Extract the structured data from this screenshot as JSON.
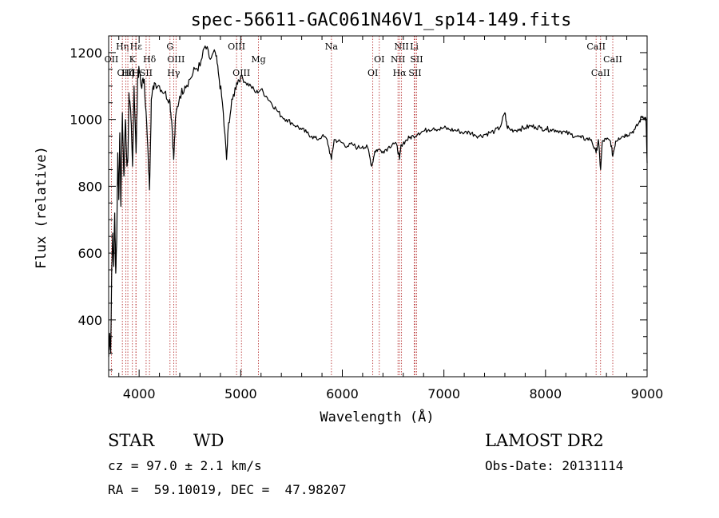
{
  "chart_data": {
    "type": "line",
    "title": "spec-56611-GAC061N46V1_sp14-149.fits",
    "xlabel": "Wavelength (Å)",
    "ylabel": "Flux (relative)",
    "xlim": [
      3700,
      9000
    ],
    "ylim": [
      230,
      1250
    ],
    "x_ticks": [
      4000,
      5000,
      6000,
      7000,
      8000,
      9000
    ],
    "x_tick_labels": [
      "4000",
      "5000",
      "6000",
      "7000",
      "8000",
      "9000"
    ],
    "y_ticks": [
      400,
      600,
      800,
      1000,
      1200
    ],
    "y_tick_labels": [
      "400",
      "600",
      "800",
      "1000",
      "1200"
    ],
    "series": [
      {
        "name": "spectrum",
        "points": [
          [
            3700,
            290
          ],
          [
            3710,
            360
          ],
          [
            3720,
            300
          ],
          [
            3730,
            540
          ],
          [
            3740,
            660
          ],
          [
            3750,
            560
          ],
          [
            3760,
            720
          ],
          [
            3770,
            540
          ],
          [
            3780,
            650
          ],
          [
            3790,
            900
          ],
          [
            3800,
            760
          ],
          [
            3810,
            960
          ],
          [
            3820,
            740
          ],
          [
            3835,
            1020
          ],
          [
            3850,
            830
          ],
          [
            3865,
            1000
          ],
          [
            3880,
            860
          ],
          [
            3889,
            880
          ],
          [
            3900,
            1080
          ],
          [
            3920,
            1000
          ],
          [
            3935,
            860
          ],
          [
            3950,
            1100
          ],
          [
            3970,
            900
          ],
          [
            3985,
            1120
          ],
          [
            4000,
            1150
          ],
          [
            4020,
            1100
          ],
          [
            4050,
            1120
          ],
          [
            4080,
            950
          ],
          [
            4102,
            790
          ],
          [
            4120,
            1060
          ],
          [
            4150,
            1110
          ],
          [
            4200,
            1100
          ],
          [
            4250,
            1080
          ],
          [
            4300,
            1060
          ],
          [
            4320,
            1000
          ],
          [
            4340,
            880
          ],
          [
            4360,
            1010
          ],
          [
            4400,
            1070
          ],
          [
            4450,
            1100
          ],
          [
            4500,
            1120
          ],
          [
            4550,
            1150
          ],
          [
            4600,
            1160
          ],
          [
            4650,
            1220
          ],
          [
            4700,
            1180
          ],
          [
            4750,
            1200
          ],
          [
            4780,
            1140
          ],
          [
            4820,
            1050
          ],
          [
            4861,
            880
          ],
          [
            4880,
            990
          ],
          [
            4920,
            1060
          ],
          [
            4960,
            1110
          ],
          [
            5000,
            1130
          ],
          [
            5050,
            1110
          ],
          [
            5100,
            1100
          ],
          [
            5150,
            1080
          ],
          [
            5200,
            1090
          ],
          [
            5250,
            1070
          ],
          [
            5300,
            1050
          ],
          [
            5350,
            1030
          ],
          [
            5400,
            1010
          ],
          [
            5450,
            1000
          ],
          [
            5500,
            990
          ],
          [
            5550,
            980
          ],
          [
            5600,
            970
          ],
          [
            5650,
            960
          ],
          [
            5700,
            950
          ],
          [
            5750,
            940
          ],
          [
            5800,
            950
          ],
          [
            5850,
            940
          ],
          [
            5893,
            880
          ],
          [
            5920,
            940
          ],
          [
            5960,
            935
          ],
          [
            6000,
            930
          ],
          [
            6050,
            920
          ],
          [
            6100,
            925
          ],
          [
            6150,
            915
          ],
          [
            6200,
            920
          ],
          [
            6250,
            915
          ],
          [
            6290,
            860
          ],
          [
            6320,
            905
          ],
          [
            6350,
            910
          ],
          [
            6400,
            905
          ],
          [
            6450,
            915
          ],
          [
            6500,
            930
          ],
          [
            6540,
            920
          ],
          [
            6563,
            880
          ],
          [
            6580,
            925
          ],
          [
            6620,
            935
          ],
          [
            6660,
            945
          ],
          [
            6700,
            950
          ],
          [
            6750,
            960
          ],
          [
            6800,
            965
          ],
          [
            6850,
            970
          ],
          [
            6900,
            975
          ],
          [
            6950,
            970
          ],
          [
            7000,
            975
          ],
          [
            7050,
            970
          ],
          [
            7100,
            968
          ],
          [
            7150,
            965
          ],
          [
            7200,
            960
          ],
          [
            7250,
            962
          ],
          [
            7300,
            955
          ],
          [
            7350,
            950
          ],
          [
            7400,
            955
          ],
          [
            7450,
            960
          ],
          [
            7500,
            965
          ],
          [
            7550,
            975
          ],
          [
            7600,
            1020
          ],
          [
            7620,
            980
          ],
          [
            7650,
            970
          ],
          [
            7700,
            968
          ],
          [
            7750,
            972
          ],
          [
            7800,
            975
          ],
          [
            7850,
            980
          ],
          [
            7900,
            978
          ],
          [
            7950,
            975
          ],
          [
            8000,
            972
          ],
          [
            8050,
            970
          ],
          [
            8100,
            968
          ],
          [
            8150,
            965
          ],
          [
            8200,
            960
          ],
          [
            8250,
            955
          ],
          [
            8300,
            950
          ],
          [
            8350,
            945
          ],
          [
            8400,
            942
          ],
          [
            8450,
            940
          ],
          [
            8498,
            900
          ],
          [
            8520,
            940
          ],
          [
            8542,
            850
          ],
          [
            8560,
            935
          ],
          [
            8600,
            940
          ],
          [
            8640,
            935
          ],
          [
            8662,
            890
          ],
          [
            8690,
            935
          ],
          [
            8720,
            945
          ],
          [
            8760,
            950
          ],
          [
            8800,
            955
          ],
          [
            8840,
            960
          ],
          [
            8880,
            970
          ],
          [
            8920,
            990
          ],
          [
            8950,
            1010
          ],
          [
            8975,
            1005
          ],
          [
            8990,
            1000
          ],
          [
            9000,
            870
          ]
        ]
      }
    ],
    "line_markers": [
      {
        "label": "Hη",
        "x": 3835,
        "row": 1
      },
      {
        "label": "Hε",
        "x": 3970,
        "row": 1
      },
      {
        "label": "G",
        "x": 4304,
        "row": 1
      },
      {
        "label": "OIII",
        "x": 4959,
        "row": 1
      },
      {
        "label": "Na",
        "x": 5893,
        "row": 1
      },
      {
        "label": "NII",
        "x": 6583,
        "row": 1
      },
      {
        "label": "Li",
        "x": 6708,
        "row": 1
      },
      {
        "label": "CaII",
        "x": 8498,
        "row": 1
      },
      {
        "label": "OII",
        "x": 3727,
        "row": 2
      },
      {
        "label": "K",
        "x": 3934,
        "row": 2
      },
      {
        "label": "Hδ",
        "x": 4102,
        "row": 2
      },
      {
        "label": "OIII",
        "x": 4363,
        "row": 2
      },
      {
        "label": "Mg",
        "x": 5175,
        "row": 2
      },
      {
        "label": "OI",
        "x": 6364,
        "row": 2
      },
      {
        "label": "NII",
        "x": 6548,
        "row": 2
      },
      {
        "label": "SII",
        "x": 6731,
        "row": 2
      },
      {
        "label": "CaII",
        "x": 8662,
        "row": 2
      },
      {
        "label": "OIII",
        "x": 3869,
        "row": 3
      },
      {
        "label": "Hζ",
        "x": 3889,
        "row": 3
      },
      {
        "label": "H",
        "x": 3968,
        "row": 3
      },
      {
        "label": "SII",
        "x": 4069,
        "row": 3
      },
      {
        "label": "Hγ",
        "x": 4340,
        "row": 3
      },
      {
        "label": "OIII",
        "x": 5007,
        "row": 3
      },
      {
        "label": "OI",
        "x": 6300,
        "row": 3
      },
      {
        "label": "Hα",
        "x": 6563,
        "row": 3
      },
      {
        "label": "SII",
        "x": 6716,
        "row": 3
      },
      {
        "label": "CaII",
        "x": 8542,
        "row": 3
      }
    ]
  },
  "info": {
    "object_type": "STAR",
    "subclass": "WD",
    "survey": "LAMOST DR2",
    "cz": "cz = 97.0 ± 2.1 km/s",
    "obs_date": "Obs-Date: 20131114",
    "coords": "RA =  59.10019, DEC =  47.98207"
  }
}
